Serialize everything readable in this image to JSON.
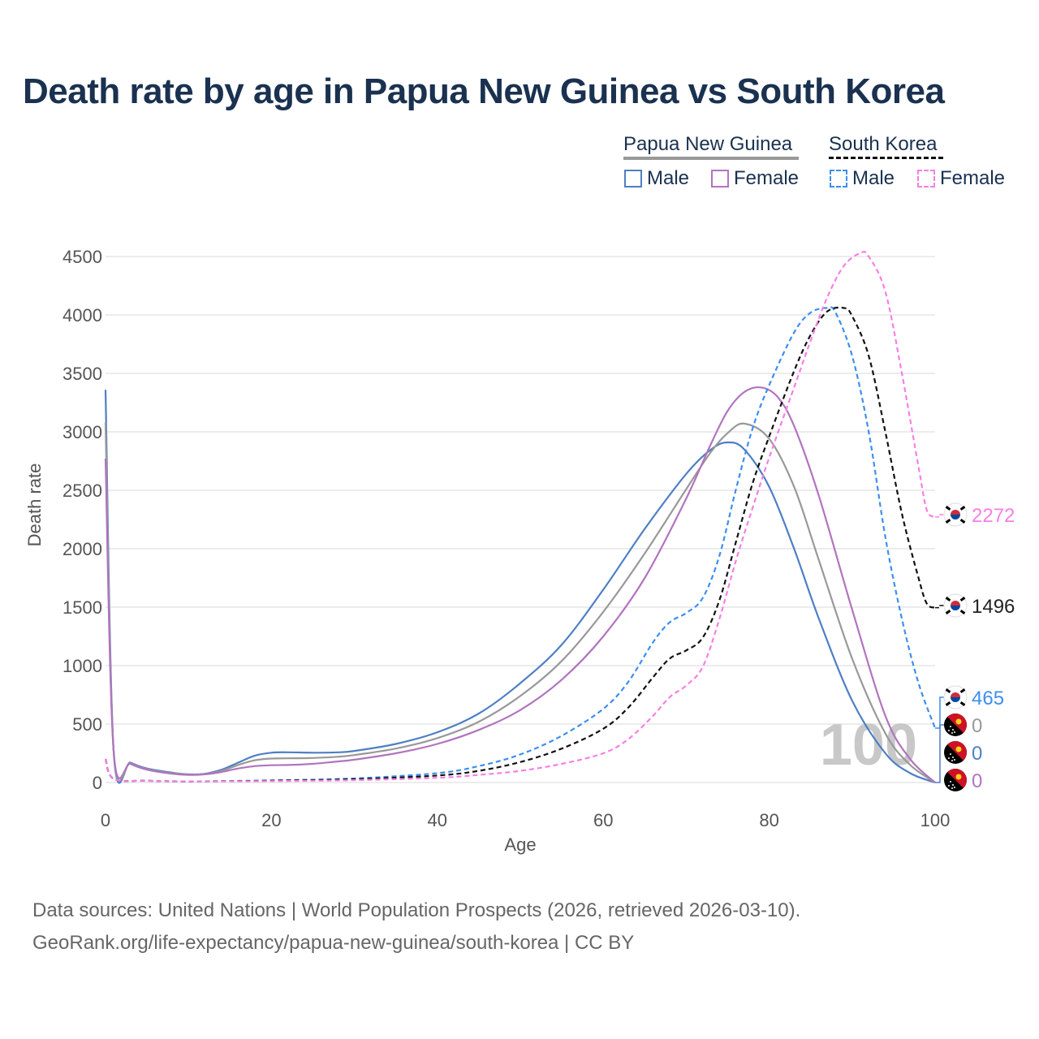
{
  "title": "Death rate by age in Papua New Guinea vs South Korea",
  "legend": {
    "groups": [
      {
        "name": "Papua New Guinea",
        "line_color": "#999999",
        "style": "solid",
        "items": [
          {
            "label": "Male",
            "color": "#4e7fc4"
          },
          {
            "label": "Female",
            "color": "#b174bf"
          }
        ]
      },
      {
        "name": "South Korea",
        "line_color": "#111111",
        "style": "dashed",
        "items": [
          {
            "label": "Male",
            "color": "#3d8ef0"
          },
          {
            "label": "Female",
            "color": "#f77fe4"
          }
        ]
      }
    ]
  },
  "age_watermark": "100",
  "end_labels": [
    {
      "value": "2272",
      "color": "#f77fe4",
      "flag": "south-korea"
    },
    {
      "value": "1496",
      "color": "#222222",
      "flag": "south-korea"
    },
    {
      "value": "465",
      "color": "#3d8ef0",
      "flag": "south-korea"
    },
    {
      "value": "0",
      "color": "#999999",
      "flag": "papua-new-guinea"
    },
    {
      "value": "0",
      "color": "#4e7fc4",
      "flag": "papua-new-guinea"
    },
    {
      "value": "0",
      "color": "#b174bf",
      "flag": "papua-new-guinea"
    }
  ],
  "source": {
    "line1": "Data sources: United Nations | World Population Prospects (2026, retrieved 2026-03-10).",
    "line2": "GeoRank.org/life-expectancy/papua-new-guinea/south-korea | CC BY"
  },
  "chart_data": {
    "type": "line",
    "title": "Death rate by age in Papua New Guinea vs South Korea",
    "xlabel": "Age",
    "ylabel": "Death rate",
    "xlim": [
      0,
      100
    ],
    "ylim": [
      0,
      4500
    ],
    "xticks": [
      0,
      20,
      40,
      60,
      80,
      100
    ],
    "yticks": [
      0,
      500,
      1000,
      1500,
      2000,
      2500,
      3000,
      3500,
      4000,
      4500
    ],
    "series": [
      {
        "name": "Papua New Guinea Male",
        "color": "#4e7fc4",
        "dash": false,
        "x": [
          0,
          1,
          3,
          5,
          8,
          10,
          12,
          14,
          16,
          18,
          20,
          22,
          25,
          28,
          30,
          35,
          40,
          45,
          50,
          55,
          60,
          65,
          70,
          73,
          75,
          77,
          80,
          83,
          86,
          90,
          94,
          97,
          100
        ],
        "y": [
          3360,
          250,
          170,
          120,
          85,
          70,
          75,
          110,
          170,
          230,
          255,
          258,
          255,
          258,
          270,
          330,
          430,
          590,
          850,
          1180,
          1650,
          2170,
          2640,
          2850,
          2910,
          2850,
          2530,
          2000,
          1400,
          700,
          250,
          80,
          0
        ]
      },
      {
        "name": "Papua New Guinea Both",
        "color": "#999999",
        "dash": false,
        "x": [
          0,
          1,
          3,
          5,
          8,
          10,
          12,
          14,
          16,
          18,
          20,
          22,
          25,
          28,
          30,
          35,
          40,
          45,
          50,
          55,
          60,
          65,
          70,
          73,
          75,
          77,
          80,
          83,
          86,
          90,
          94,
          97,
          100
        ],
        "y": [
          3080,
          250,
          165,
          115,
          80,
          68,
          72,
          100,
          150,
          190,
          205,
          207,
          210,
          220,
          235,
          290,
          380,
          520,
          740,
          1040,
          1460,
          1960,
          2510,
          2830,
          2990,
          3070,
          2940,
          2530,
          1900,
          1060,
          420,
          150,
          0
        ]
      },
      {
        "name": "Papua New Guinea Female",
        "color": "#b174bf",
        "dash": false,
        "x": [
          0,
          1,
          3,
          5,
          8,
          10,
          12,
          14,
          16,
          18,
          20,
          22,
          25,
          28,
          30,
          35,
          40,
          45,
          50,
          55,
          60,
          65,
          70,
          73,
          75,
          77,
          79,
          81,
          83,
          86,
          90,
          94,
          97,
          100
        ],
        "y": [
          2770,
          250,
          160,
          110,
          75,
          65,
          70,
          90,
          120,
          140,
          148,
          150,
          160,
          180,
          195,
          250,
          330,
          450,
          620,
          880,
          1250,
          1750,
          2430,
          2900,
          3180,
          3340,
          3380,
          3300,
          3050,
          2450,
          1480,
          570,
          200,
          0
        ]
      },
      {
        "name": "South Korea Male",
        "color": "#3d8ef0",
        "dash": true,
        "x": [
          0,
          1,
          5,
          10,
          20,
          30,
          40,
          45,
          50,
          55,
          60,
          63,
          66,
          68,
          70,
          72,
          74,
          76,
          78,
          80,
          83,
          85,
          87,
          88,
          90,
          92,
          94,
          96,
          98,
          100
        ],
        "y": [
          200,
          30,
          15,
          10,
          18,
          35,
          80,
          140,
          240,
          400,
          630,
          860,
          1200,
          1370,
          1450,
          1580,
          1940,
          2510,
          3030,
          3400,
          3850,
          4020,
          4060,
          4020,
          3650,
          3000,
          2100,
          1400,
          850,
          465
        ]
      },
      {
        "name": "South Korea Both",
        "color": "#111111",
        "dash": true,
        "x": [
          0,
          1,
          5,
          10,
          20,
          30,
          40,
          45,
          50,
          55,
          60,
          63,
          66,
          68,
          70,
          72,
          74,
          76,
          78,
          80,
          83,
          85,
          87,
          89,
          90,
          92,
          94,
          96,
          98,
          99,
          100
        ],
        "y": [
          200,
          30,
          15,
          10,
          15,
          28,
          60,
          100,
          175,
          290,
          460,
          640,
          900,
          1060,
          1130,
          1240,
          1560,
          2060,
          2560,
          2960,
          3520,
          3830,
          4030,
          4060,
          3990,
          3650,
          3000,
          2300,
          1750,
          1530,
          1496
        ]
      },
      {
        "name": "South Korea Female",
        "color": "#f77fe4",
        "dash": true,
        "x": [
          0,
          1,
          5,
          10,
          20,
          30,
          40,
          45,
          50,
          55,
          60,
          63,
          66,
          68,
          70,
          72,
          74,
          76,
          78,
          80,
          83,
          85,
          87,
          89,
          91,
          92,
          94,
          96,
          98,
          99,
          100
        ],
        "y": [
          200,
          30,
          15,
          10,
          12,
          20,
          40,
          65,
          100,
          160,
          250,
          370,
          570,
          730,
          830,
          990,
          1400,
          1900,
          2350,
          2780,
          3380,
          3780,
          4150,
          4420,
          4530,
          4500,
          4200,
          3500,
          2700,
          2330,
          2272
        ]
      }
    ]
  }
}
